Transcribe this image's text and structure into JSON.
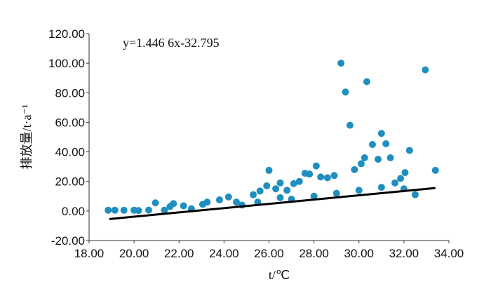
{
  "chart_data": {
    "type": "scatter",
    "title": "",
    "equation": "y=1.446 6x-32.795",
    "xlabel": "t/℃",
    "ylabel": "排放量/t·a⁻¹",
    "xlim": [
      18,
      34
    ],
    "ylim": [
      -20,
      120
    ],
    "xticks": [
      "18.00",
      "20.00",
      "22.00",
      "24.00",
      "26.00",
      "28.00",
      "30.00",
      "32.00",
      "34.00"
    ],
    "yticks": [
      "-20.00",
      "0.00",
      "20.00",
      "40.00",
      "60.00",
      "80.00",
      "100.00",
      "120.00"
    ],
    "grid": false,
    "point_color": "#1f8fbf",
    "trendline": {
      "slope": 1.4466,
      "intercept": -32.795,
      "x_range": [
        18.9,
        33.4
      ],
      "color": "#000000"
    },
    "series": [
      {
        "values": [
          [
            18.85,
            0.5
          ],
          [
            19.15,
            0.5
          ],
          [
            19.55,
            0.5
          ],
          [
            20.0,
            0.5
          ],
          [
            20.2,
            0.3
          ],
          [
            20.65,
            0.6
          ],
          [
            20.95,
            5.5
          ],
          [
            21.35,
            0.5
          ],
          [
            21.6,
            3.0
          ],
          [
            21.75,
            5.0
          ],
          [
            22.2,
            3.5
          ],
          [
            22.55,
            1.5
          ],
          [
            23.05,
            4.5
          ],
          [
            23.25,
            6.0
          ],
          [
            23.8,
            7.5
          ],
          [
            24.2,
            9.5
          ],
          [
            24.55,
            6.0
          ],
          [
            24.8,
            4.0
          ],
          [
            25.3,
            11.0
          ],
          [
            25.6,
            13.5
          ],
          [
            25.9,
            17.0
          ],
          [
            26.0,
            27.5
          ],
          [
            26.3,
            15.0
          ],
          [
            26.5,
            19.0
          ],
          [
            26.8,
            14.0
          ],
          [
            27.1,
            18.5
          ],
          [
            27.35,
            20.0
          ],
          [
            27.6,
            25.5
          ],
          [
            27.8,
            25.0
          ],
          [
            28.1,
            30.5
          ],
          [
            28.3,
            23.0
          ],
          [
            28.6,
            22.5
          ],
          [
            28.9,
            24.0
          ],
          [
            29.2,
            100.0
          ],
          [
            29.4,
            80.5
          ],
          [
            29.6,
            58.0
          ],
          [
            29.8,
            28.0
          ],
          [
            30.1,
            32.0
          ],
          [
            30.25,
            36.0
          ],
          [
            30.35,
            87.5
          ],
          [
            30.6,
            45.0
          ],
          [
            30.85,
            35.0
          ],
          [
            31.0,
            52.5
          ],
          [
            31.2,
            45.5
          ],
          [
            31.4,
            36.0
          ],
          [
            31.6,
            19.0
          ],
          [
            31.85,
            22.0
          ],
          [
            32.05,
            26.0
          ],
          [
            32.25,
            41.0
          ],
          [
            32.5,
            11.0
          ],
          [
            32.95,
            95.5
          ],
          [
            33.4,
            27.5
          ],
          [
            27.0,
            8.0
          ],
          [
            28.0,
            10.0
          ],
          [
            29.0,
            12.0
          ],
          [
            30.0,
            14.0
          ],
          [
            31.0,
            16.0
          ],
          [
            32.0,
            15.0
          ],
          [
            25.5,
            6.0
          ],
          [
            26.5,
            9.0
          ]
        ]
      }
    ]
  }
}
